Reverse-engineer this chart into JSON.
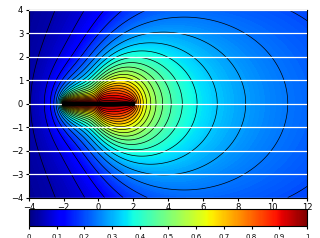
{
  "xlim": [
    -4,
    12
  ],
  "ylim": [
    -4,
    4
  ],
  "plate_x_start": -2.0,
  "plate_x_end": 2.0,
  "plate_y": 0.0,
  "colormap": "jet",
  "vmin": 0.0,
  "vmax": 1.0,
  "colorbar_ticks": [
    0,
    0.1,
    0.2,
    0.3,
    0.4,
    0.5,
    0.6,
    0.7,
    0.8,
    0.9,
    1
  ],
  "colorbar_ticklabels": [
    "0",
    "0.1",
    "0.2",
    "0.3",
    "0.4",
    "0.5",
    "0.6",
    "0.7",
    "0.8",
    "0.9",
    "1"
  ],
  "xticks": [
    -4,
    -2,
    0,
    2,
    4,
    6,
    8,
    10,
    12
  ],
  "yticks": [
    -4,
    -3,
    -2,
    -1,
    0,
    1,
    2,
    3,
    4
  ],
  "n_contour_lines": 25,
  "n_grid": 500,
  "background_color": "#ffffff",
  "plate_color": "black",
  "plate_linewidth": 3,
  "contour_linewidth": 0.5,
  "contour_color": "black",
  "streamline_color": "white",
  "streamline_linewidth": 0.9,
  "k_decay": 1.0,
  "asymmetry_upstream": 2.5,
  "asymmetry_downstream": 0.6
}
